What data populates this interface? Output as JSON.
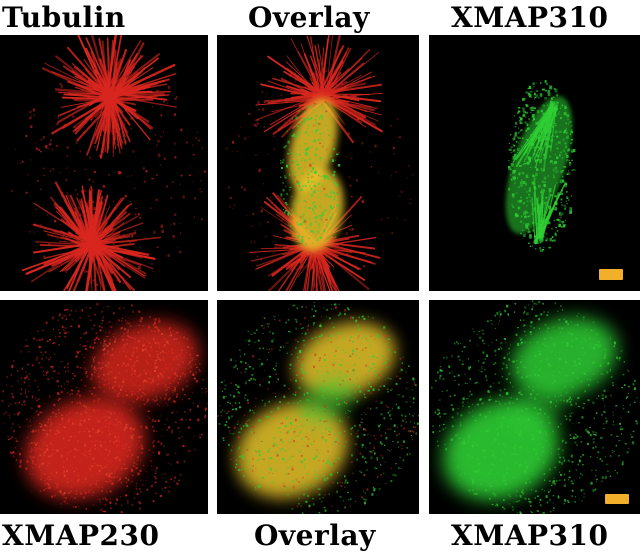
{
  "labels": {
    "top": [
      "Tubulin",
      "Overlay",
      "XMAP310"
    ],
    "bottom": [
      "XMAP230",
      "Overlay",
      "XMAP310"
    ]
  },
  "colors": {
    "red": "#d8261f",
    "green": "#2fcf34",
    "yellow": "#e7c52c",
    "scale_bar": "#f2b02a",
    "panel_background": "#000000"
  }
}
